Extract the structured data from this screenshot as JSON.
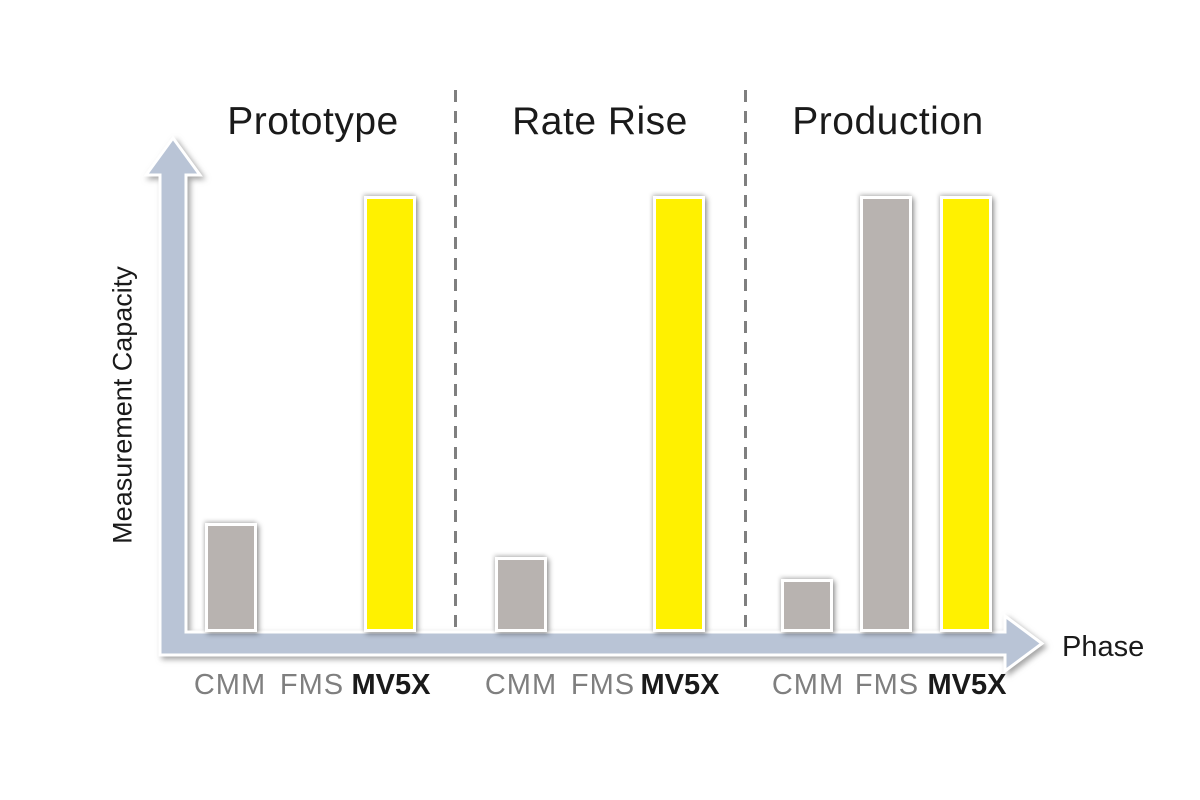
{
  "chart_data": {
    "type": "bar",
    "title": "",
    "xlabel": "Phase",
    "ylabel": "Measurement Capacity",
    "categories": [
      "CMM",
      "FMS",
      "MV5X"
    ],
    "groups": [
      {
        "label": "Prototype",
        "values": [
          24,
          0,
          100
        ]
      },
      {
        "label": "Rate Rise",
        "values": [
          16,
          0,
          100
        ]
      },
      {
        "label": "Production",
        "values": [
          11,
          100,
          100
        ]
      }
    ],
    "ylim": [
      0,
      100
    ],
    "value_note": "estimated relative bar heights, MV5X = 100 (no numeric axis shown)",
    "grid": false,
    "legend": null,
    "series_colors": {
      "CMM": "#b8b3b0",
      "FMS": "#b8b3b0",
      "MV5X": "#fff100"
    }
  },
  "colors": {
    "axis": "#b9c4d6",
    "axis-outline": "#ffffff",
    "divider": "#7f7f7f",
    "bar-gray": "#b8b3b0",
    "bar-yellow": "#fff100",
    "text-primary": "#1a1a1a",
    "text-muted": "#7f7f7f",
    "background": "#ffffff"
  }
}
